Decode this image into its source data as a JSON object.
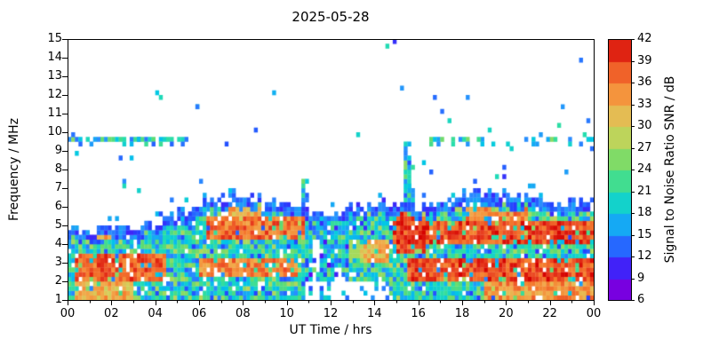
{
  "chart_data": {
    "type": "heatmap",
    "title": "2025-05-28",
    "xlabel": "UT Time / hrs",
    "ylabel": "Frequency / MHz",
    "colorbar_label": "Signal to Noise Ratio SNR / dB",
    "xlim": [
      0,
      24
    ],
    "ylim": [
      1,
      15
    ],
    "x_tick_hours": [
      0,
      2,
      4,
      6,
      8,
      10,
      12,
      14,
      16,
      18,
      20,
      22,
      24
    ],
    "x_tick_labels": [
      "00",
      "02",
      "04",
      "06",
      "08",
      "10",
      "12",
      "14",
      "16",
      "18",
      "20",
      "22",
      "00"
    ],
    "y_ticks": [
      1,
      2,
      3,
      4,
      5,
      6,
      7,
      8,
      9,
      10,
      11,
      12,
      13,
      14,
      15
    ],
    "snr_range": [
      6,
      42
    ],
    "snr_ticks": [
      6,
      9,
      12,
      15,
      18,
      21,
      24,
      27,
      30,
      33,
      36,
      39,
      42
    ],
    "colormap": [
      [
        6,
        "#9000d0"
      ],
      [
        9,
        "#6000f0"
      ],
      [
        12,
        "#2244ff"
      ],
      [
        15,
        "#2a8cff"
      ],
      [
        18,
        "#00c6e8"
      ],
      [
        21,
        "#25ddae"
      ],
      [
        24,
        "#5cdc72"
      ],
      [
        27,
        "#a4da5c"
      ],
      [
        30,
        "#d6ce5a"
      ],
      [
        33,
        "#f2a94b"
      ],
      [
        36,
        "#f57e2e"
      ],
      [
        39,
        "#ea4523"
      ],
      [
        42,
        "#d40000"
      ]
    ],
    "grid": false,
    "legend": "colorbar-right",
    "seed": 20250528,
    "resolution": {
      "cols": 144,
      "rows": 56
    },
    "envelope": [
      [
        0,
        5.0
      ],
      [
        1,
        4.8
      ],
      [
        2,
        4.8
      ],
      [
        3,
        4.9
      ],
      [
        4,
        5.1
      ],
      [
        5,
        5.6
      ],
      [
        6,
        6.2
      ],
      [
        7,
        6.5
      ],
      [
        8,
        6.5
      ],
      [
        9,
        6.4
      ],
      [
        10,
        6.3
      ],
      [
        11,
        5.9
      ],
      [
        12,
        5.8
      ],
      [
        13,
        6.0
      ],
      [
        14,
        6.1
      ],
      [
        15,
        6.3
      ],
      [
        16,
        6.1
      ],
      [
        17,
        5.9
      ],
      [
        18,
        6.6
      ],
      [
        19,
        6.8
      ],
      [
        20,
        6.6
      ],
      [
        21,
        6.4
      ],
      [
        22,
        6.4
      ],
      [
        23,
        6.3
      ],
      [
        24,
        6.1
      ]
    ],
    "hot_bands": [
      {
        "t0": 0.3,
        "t1": 4.5,
        "f0": 2.1,
        "f1": 3.4,
        "snr": 38
      },
      {
        "t0": 0.3,
        "t1": 3.0,
        "f0": 1.1,
        "f1": 1.9,
        "snr": 33
      },
      {
        "t0": 0.8,
        "t1": 2.2,
        "f0": 4.2,
        "f1": 5.0,
        "snr": 33
      },
      {
        "t0": 6.0,
        "t1": 10.5,
        "f0": 2.3,
        "f1": 3.2,
        "snr": 36
      },
      {
        "t0": 6.3,
        "t1": 10.8,
        "f0": 4.3,
        "f1": 5.4,
        "snr": 37
      },
      {
        "t0": 7.0,
        "t1": 9.0,
        "f0": 5.2,
        "f1": 6.0,
        "snr": 33
      },
      {
        "t0": 12.8,
        "t1": 14.6,
        "f0": 3.0,
        "f1": 4.3,
        "snr": 33
      },
      {
        "t0": 14.8,
        "t1": 24,
        "f0": 3.9,
        "f1": 5.3,
        "snr": 39
      },
      {
        "t0": 15.0,
        "t1": 16.3,
        "f0": 3.4,
        "f1": 5.7,
        "snr": 39
      },
      {
        "t0": 15.5,
        "t1": 24,
        "f0": 2.0,
        "f1": 3.3,
        "snr": 39
      },
      {
        "t0": 18.2,
        "t1": 21.0,
        "f0": 5.3,
        "f1": 6.1,
        "snr": 36
      },
      {
        "t0": 19.0,
        "t1": 24,
        "f0": 1.1,
        "f1": 1.9,
        "snr": 35
      }
    ],
    "quiet_midday": {
      "t0": 10.8,
      "t1": 14.6,
      "f_bottom": 2.0
    },
    "gaps": [
      {
        "t0": 11.15,
        "t1": 11.5,
        "f1": 4.2
      },
      {
        "t0": 12.2,
        "t1": 12.5,
        "f1": 2.8
      }
    ],
    "fixed_bands": [
      {
        "f": 9.45,
        "t0": 0,
        "t1": 5.4,
        "density": 0.75
      },
      {
        "f": 9.55,
        "t0": 16.6,
        "t1": 24,
        "density": 0.45
      }
    ],
    "spikes": [
      {
        "t": 10.75,
        "f0": 6.2,
        "f1": 7.5
      },
      {
        "t": 15.35,
        "f0": 6.3,
        "f1": 9.3
      },
      {
        "t": 15.55,
        "f0": 6.3,
        "f1": 8.1
      }
    ],
    "dots": [
      [
        14.6,
        14.5
      ],
      [
        4.15,
        12.1
      ],
      [
        4.3,
        11.9
      ],
      [
        5.85,
        11.4
      ],
      [
        5.95,
        11.3
      ],
      [
        9.35,
        12.0
      ],
      [
        13.3,
        9.9
      ],
      [
        16.8,
        11.8
      ],
      [
        17.1,
        11.2
      ],
      [
        17.4,
        10.6
      ],
      [
        18.0,
        9.6
      ],
      [
        19.2,
        10.0
      ],
      [
        20.3,
        9.0
      ],
      [
        21.5,
        9.8
      ],
      [
        22.4,
        10.4
      ],
      [
        23.5,
        9.9
      ],
      [
        23.7,
        10.5
      ],
      [
        0.2,
        9.9
      ],
      [
        2.5,
        7.1
      ],
      [
        3.2,
        6.9
      ],
      [
        6.1,
        7.3
      ],
      [
        16.2,
        8.4
      ],
      [
        16.5,
        7.9
      ],
      [
        19.6,
        7.6
      ],
      [
        21.1,
        7.2
      ]
    ]
  }
}
